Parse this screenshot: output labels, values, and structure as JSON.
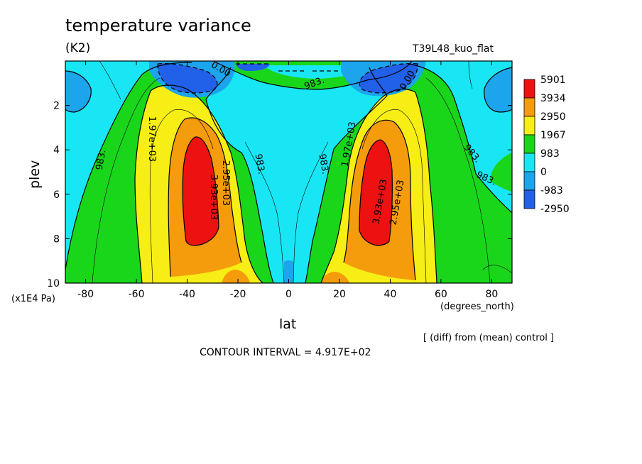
{
  "chart_data": {
    "type": "heatmap",
    "title": "temperature variance",
    "units": "(K2)",
    "run_label": "T39L48_kuo_flat",
    "xlabel": "lat",
    "x_units": "(degrees_north)",
    "ylabel": "plev",
    "y_units": "(x1E4 Pa)",
    "footnote": "[ (diff) from (mean) control ]",
    "contour_interval": "CONTOUR INTERVAL = 4.917E+02",
    "xlim": [
      -88,
      88
    ],
    "ylim": [
      10,
      0
    ],
    "x_ticks": [
      "-80",
      "-60",
      "-40",
      "-20",
      "0",
      "20",
      "40",
      "60",
      "80"
    ],
    "y_ticks": [
      "2",
      "4",
      "6",
      "8",
      "10"
    ],
    "legend": [
      {
        "label": "5901",
        "color": "#ee1111"
      },
      {
        "label": "3934",
        "color": "#f59c0c"
      },
      {
        "label": "2950",
        "color": "#f6ee14"
      },
      {
        "label": "1967",
        "color": "#19d61b"
      },
      {
        "label": "983",
        "color": "#18e6f4"
      },
      {
        "label": "0",
        "color": "#1ca4ec"
      },
      {
        "label": "-983",
        "color": "#2160e8"
      },
      {
        "label": "-2950",
        "color": ""
      }
    ],
    "contour_labels": [
      "0.00",
      "983.",
      "1.97e+03",
      "2.95e+03",
      "3.93e+03",
      "983.",
      "1.97e+03",
      "2.95e+03",
      "3.93e+03",
      "0.00",
      "983.",
      "983.",
      "983.",
      "983."
    ]
  }
}
